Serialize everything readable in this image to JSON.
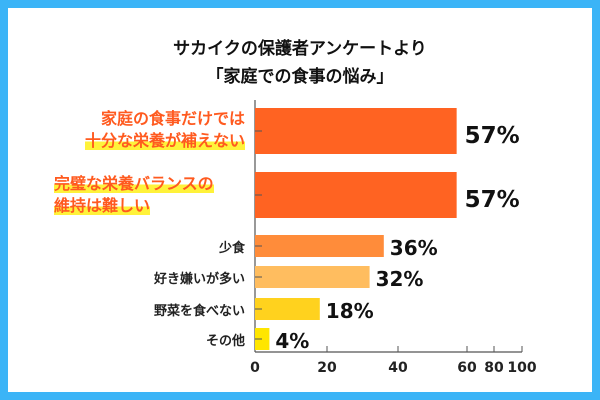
{
  "chart_data": {
    "type": "bar",
    "title": "サカイクの保護者アンケートより",
    "subtitle": "「家庭での食事の悩み」",
    "categories": [
      {
        "line1": "家庭の食事だけでは",
        "line2": "十分な栄養が補えない"
      },
      {
        "line1": "完璧な栄養バランスの",
        "line2": "維持は難しい"
      },
      {
        "line1": "少食"
      },
      {
        "line1": "好き嫌いが多い"
      },
      {
        "line1": "野菜を食べない"
      },
      {
        "line1": "その他"
      }
    ],
    "values": [
      57,
      57,
      36,
      32,
      18,
      4
    ],
    "value_labels": [
      "57%",
      "57%",
      "36%",
      "32%",
      "18%",
      "4%"
    ],
    "colors": [
      "#ff6322",
      "#ff6322",
      "#ff8c3a",
      "#ffbd5f",
      "#ffd21e",
      "#ffe600"
    ],
    "xticks": [
      "0",
      "20",
      "40",
      "60",
      "80",
      "100"
    ],
    "xlim": [
      0,
      100
    ],
    "xlabel": "",
    "ylabel": "",
    "grid": false,
    "legend": "none"
  }
}
